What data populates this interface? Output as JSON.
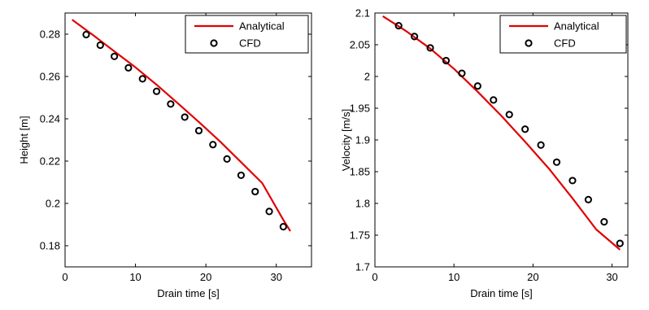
{
  "chart_data": [
    {
      "type": "line",
      "xlabel": "Drain time [s]",
      "ylabel": "Height [m]",
      "xlim": [
        0,
        35
      ],
      "ylim": [
        0.17,
        0.29
      ],
      "xticks": [
        0,
        10,
        20,
        30
      ],
      "yticks": [
        0.18,
        0.2,
        0.22,
        0.24,
        0.26,
        0.28
      ],
      "ytick_labels": [
        "0.18",
        "0.2",
        "0.22",
        "0.24",
        "0.26",
        "0.28"
      ],
      "xtick_labels": [
        "0",
        "10",
        "20",
        "30"
      ],
      "legend_position": "top-right",
      "series": [
        {
          "name": "Analytical",
          "style": "line",
          "color": "#e00000",
          "x": [
            1,
            4,
            7,
            10,
            13,
            16,
            19,
            22,
            25,
            28,
            31,
            32
          ],
          "y": [
            0.2868,
            0.2795,
            0.2719,
            0.2643,
            0.2561,
            0.2474,
            0.2385,
            0.2293,
            0.2195,
            0.2096,
            0.1922,
            0.1869
          ]
        },
        {
          "name": "CFD",
          "style": "markers",
          "color": "#000000",
          "x": [
            3,
            5,
            7,
            9,
            11,
            13,
            15,
            17,
            19,
            21,
            23,
            25,
            27,
            29,
            31
          ],
          "y": [
            0.2798,
            0.2748,
            0.2695,
            0.2641,
            0.2589,
            0.253,
            0.247,
            0.2408,
            0.2344,
            0.2278,
            0.221,
            0.2133,
            0.2056,
            0.1962,
            0.189
          ]
        }
      ]
    },
    {
      "type": "line",
      "xlabel": "Drain time [s]",
      "ylabel": "Velocity [m/s]",
      "xlim": [
        0,
        32
      ],
      "ylim": [
        1.7,
        2.1
      ],
      "xticks": [
        0,
        10,
        20,
        30
      ],
      "yticks": [
        1.7,
        1.75,
        1.8,
        1.85,
        1.9,
        1.95,
        2.0,
        2.05,
        2.1
      ],
      "ytick_labels": [
        "1.7",
        "1.75",
        "1.8",
        "1.85",
        "1.9",
        "1.95",
        "2",
        "2.05",
        "2.1"
      ],
      "xtick_labels": [
        "0",
        "10",
        "20",
        "30"
      ],
      "legend_position": "top-right",
      "series": [
        {
          "name": "Analytical",
          "style": "line",
          "color": "#e00000",
          "x": [
            1,
            4,
            7,
            10,
            13,
            16,
            19,
            22,
            25,
            28,
            31
          ],
          "y": [
            2.095,
            2.071,
            2.044,
            2.012,
            1.976,
            1.938,
            1.897,
            1.855,
            1.808,
            1.759,
            1.727
          ]
        },
        {
          "name": "CFD",
          "style": "markers",
          "color": "#000000",
          "x": [
            3,
            5,
            7,
            9,
            11,
            13,
            15,
            17,
            19,
            21,
            23,
            25,
            27,
            29,
            31
          ],
          "y": [
            2.08,
            2.063,
            2.045,
            2.025,
            2.005,
            1.985,
            1.963,
            1.94,
            1.917,
            1.892,
            1.865,
            1.836,
            1.806,
            1.771,
            1.737
          ]
        }
      ]
    }
  ]
}
